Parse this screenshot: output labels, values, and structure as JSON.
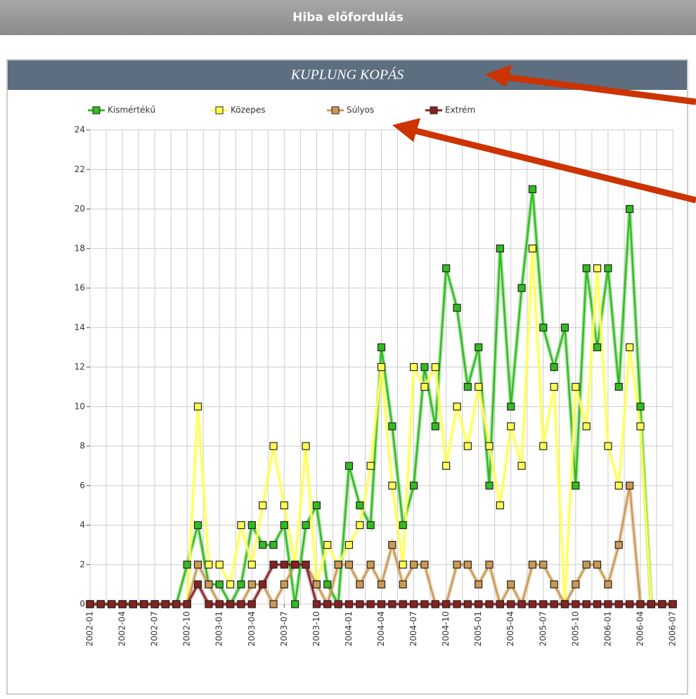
{
  "header": {
    "title": "Hiba előfordulás"
  },
  "chart_data": {
    "type": "line",
    "title": "KUPLUNG KOPÁS",
    "categories": [
      "2002-01",
      null,
      null,
      "2002-04",
      null,
      null,
      "2002-07",
      null,
      null,
      "2002-10",
      null,
      null,
      "2003-01",
      null,
      null,
      "2003-04",
      null,
      null,
      "2003-07",
      null,
      null,
      "2003-10",
      null,
      null,
      "2004-01",
      null,
      null,
      "2004-04",
      null,
      null,
      "2004-07",
      null,
      null,
      "2004-10",
      null,
      null,
      "2005-01",
      null,
      null,
      "2005-04",
      null,
      null,
      "2005-07",
      null,
      null,
      "2005-10",
      null,
      null,
      "2006-01",
      null,
      null,
      "2006-04",
      null,
      null,
      "2006-07"
    ],
    "series": [
      {
        "name": "Kismértékű",
        "color": "#33bb22",
        "values": [
          0,
          0,
          0,
          0,
          0,
          0,
          0,
          0,
          0,
          2,
          4,
          1,
          1,
          0,
          1,
          4,
          3,
          3,
          4,
          0,
          4,
          5,
          1,
          0,
          7,
          5,
          4,
          13,
          9,
          4,
          6,
          12,
          9,
          17,
          15,
          11,
          13,
          6,
          18,
          10,
          16,
          21,
          14,
          12,
          14,
          6,
          17,
          13,
          17,
          11,
          20,
          10,
          0,
          0,
          0
        ]
      },
      {
        "name": "Közepes",
        "color": "#ffff55",
        "values": [
          0,
          0,
          0,
          0,
          0,
          0,
          0,
          0,
          0,
          0,
          10,
          2,
          2,
          1,
          4,
          2,
          5,
          8,
          5,
          2,
          8,
          1,
          3,
          2,
          3,
          4,
          7,
          12,
          6,
          2,
          12,
          11,
          12,
          7,
          10,
          8,
          11,
          8,
          5,
          9,
          7,
          18,
          8,
          11,
          0,
          11,
          9,
          17,
          8,
          6,
          13,
          9,
          0,
          0,
          0
        ]
      },
      {
        "name": "Súlyos",
        "color": "#cc9955",
        "values": [
          0,
          0,
          0,
          0,
          0,
          0,
          0,
          0,
          0,
          0,
          2,
          1,
          0,
          0,
          0,
          1,
          1,
          0,
          1,
          2,
          2,
          1,
          0,
          2,
          2,
          1,
          2,
          1,
          3,
          1,
          2,
          2,
          0,
          0,
          2,
          2,
          1,
          2,
          0,
          1,
          0,
          2,
          2,
          1,
          0,
          1,
          2,
          2,
          1,
          3,
          6,
          0,
          0,
          0,
          0
        ]
      },
      {
        "name": "Extrém",
        "color": "#882222",
        "values": [
          0,
          0,
          0,
          0,
          0,
          0,
          0,
          0,
          0,
          0,
          1,
          0,
          0,
          0,
          0,
          0,
          1,
          2,
          2,
          2,
          2,
          0,
          0,
          0,
          0,
          0,
          0,
          0,
          0,
          0,
          0,
          0,
          0,
          0,
          0,
          0,
          0,
          0,
          0,
          0,
          0,
          0,
          0,
          0,
          0,
          0,
          0,
          0,
          0,
          0,
          0,
          0,
          0,
          0,
          0
        ]
      }
    ],
    "ylim": [
      0,
      24
    ],
    "yticks": [
      0,
      2,
      4,
      6,
      8,
      10,
      12,
      14,
      16,
      18,
      20,
      22,
      24
    ],
    "grid": true,
    "legend": "top"
  }
}
